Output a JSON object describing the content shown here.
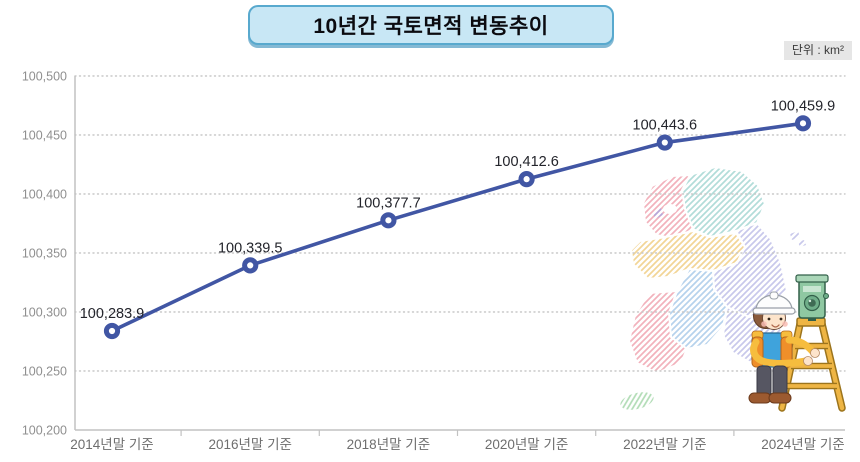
{
  "header": {
    "title": "10년간 국토면적 변동추이",
    "unit_label": "단위 : km²"
  },
  "chart_data": {
    "type": "line",
    "title": "10년간 국토면적 변동추이",
    "unit": "km²",
    "categories": [
      "2014년말 기준",
      "2016년말 기준",
      "2018년말 기준",
      "2020년말 기준",
      "2022년말 기준",
      "2024년말 기준"
    ],
    "series": [
      {
        "name": "국토면적",
        "values": [
          100283.9,
          100339.5,
          100377.7,
          100412.6,
          100443.6,
          100459.9
        ]
      }
    ],
    "value_labels": [
      "100,283.9",
      "100,339.5",
      "100,377.7",
      "100,412.6",
      "100,443.6",
      "100,459.9"
    ],
    "ylim": [
      100200,
      100500
    ],
    "y_tick_values": [
      100200,
      100250,
      100300,
      100350,
      100400,
      100450,
      100500
    ],
    "y_tick_labels": [
      "100,200",
      "100,250",
      "100,300",
      "100,350",
      "100,400",
      "100,450",
      "100,500"
    ],
    "grid": "horizontal-dotted",
    "legend": "none",
    "style": {
      "line_color": "#4156a4",
      "marker_ring_color": "#4156a4",
      "marker_fill": "#ffffff",
      "grid_color": "#c8c8c8",
      "axis_color": "#c2c2c2",
      "y_label_color": "#8f8f8f",
      "x_label_color": "#6e6e6e",
      "value_label_color": "#23242b",
      "title_box_bg": "#c8e7f5",
      "title_box_border": "#58a9ce"
    }
  },
  "decor": {
    "map_icon": "south-korea-provinces-map",
    "character_icon": "surveyor-with-theodolite-and-ladder"
  }
}
